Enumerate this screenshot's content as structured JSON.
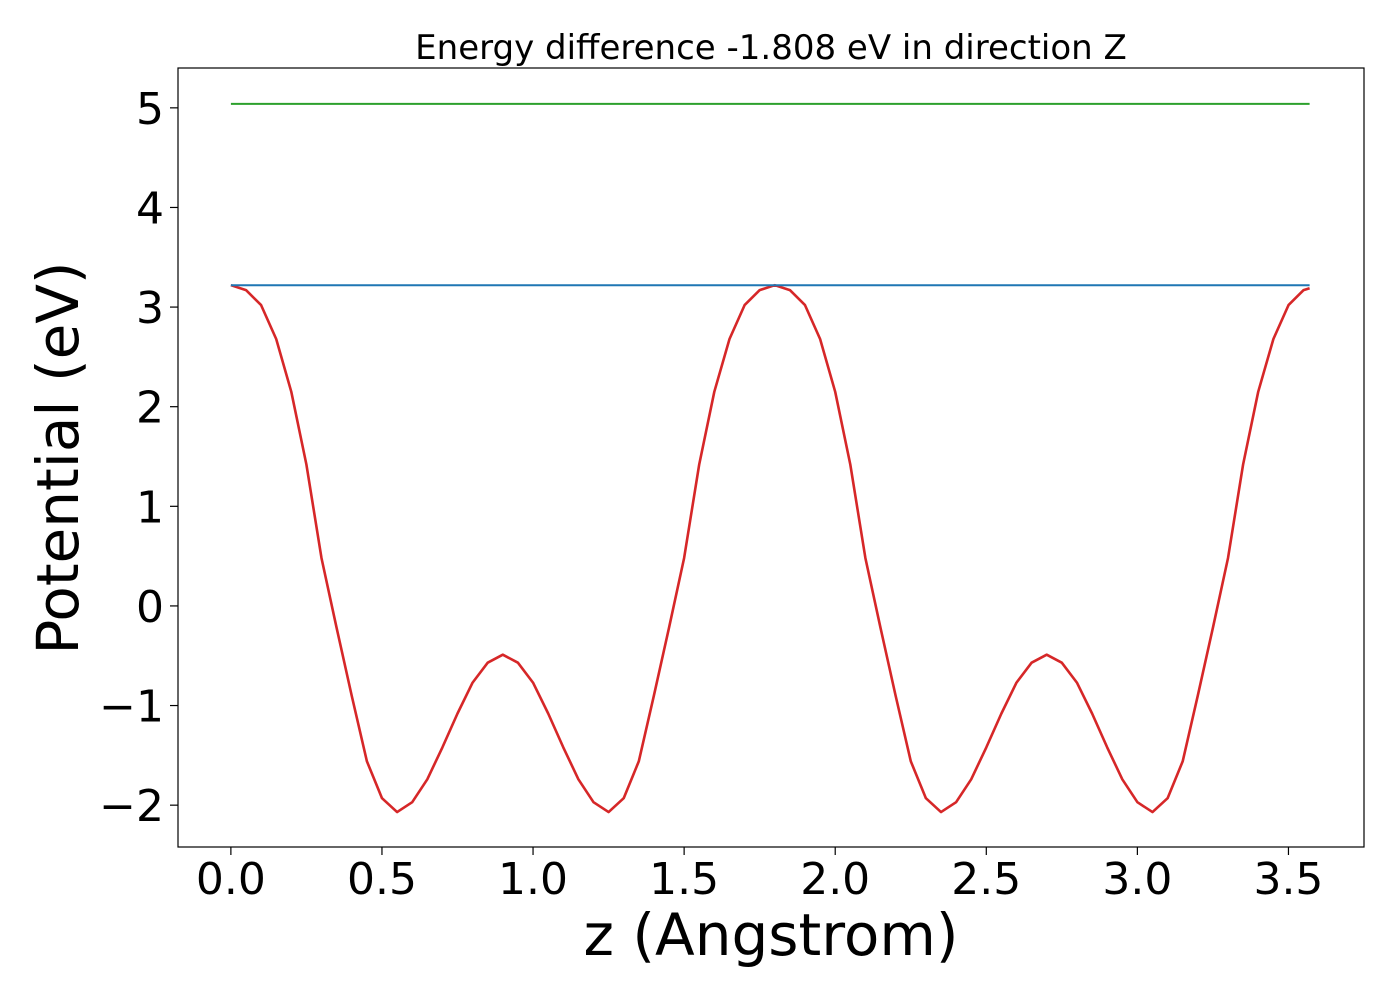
{
  "chart_data": {
    "type": "line",
    "title": "Energy difference -1.808 eV in direction Z",
    "xlabel": "z (Angstrom)",
    "ylabel": "Potential (eV)",
    "xlim": [
      -0.175,
      3.75
    ],
    "ylim": [
      -2.42,
      5.4
    ],
    "xticks": [
      0.0,
      0.5,
      1.0,
      1.5,
      2.0,
      2.5,
      3.0,
      3.5
    ],
    "xtick_labels": [
      "0.0",
      "0.5",
      "1.0",
      "1.5",
      "2.0",
      "2.5",
      "3.0",
      "3.5"
    ],
    "yticks": [
      -2,
      -1,
      0,
      1,
      2,
      3,
      4,
      5
    ],
    "ytick_labels": [
      "−2",
      "−1",
      "0",
      "1",
      "2",
      "3",
      "4",
      "5"
    ],
    "grid": false,
    "series": [
      {
        "color": "#d62728",
        "x": [
          0.0,
          0.05,
          0.1,
          0.15,
          0.2,
          0.25,
          0.3,
          0.35,
          0.4,
          0.45,
          0.5,
          0.55,
          0.6,
          0.65,
          0.7,
          0.75,
          0.8,
          0.85,
          0.9,
          0.95,
          1.0,
          1.05,
          1.1,
          1.15,
          1.2,
          1.25,
          1.3,
          1.35,
          1.4,
          1.45,
          1.5,
          1.55,
          1.6,
          1.65,
          1.7,
          1.75,
          1.8,
          1.85,
          1.9,
          1.95,
          2.0,
          2.05,
          2.1,
          2.15,
          2.2,
          2.25,
          2.3,
          2.35,
          2.4,
          2.45,
          2.5,
          2.55,
          2.6,
          2.65,
          2.7,
          2.75,
          2.8,
          2.85,
          2.9,
          2.95,
          3.0,
          3.05,
          3.1,
          3.15,
          3.2,
          3.25,
          3.3,
          3.35,
          3.4,
          3.45,
          3.5,
          3.55,
          3.57
        ],
        "y": [
          3.22,
          3.17,
          3.02,
          2.68,
          2.15,
          1.42,
          0.48,
          -0.22,
          -0.9,
          -1.56,
          -1.93,
          -2.07,
          -1.97,
          -1.74,
          -1.42,
          -1.08,
          -0.77,
          -0.57,
          -0.49,
          -0.57,
          -0.77,
          -1.08,
          -1.42,
          -1.74,
          -1.97,
          -2.07,
          -1.93,
          -1.56,
          -0.9,
          -0.22,
          0.48,
          1.42,
          2.15,
          2.68,
          3.02,
          3.17,
          3.22,
          3.17,
          3.02,
          2.68,
          2.15,
          1.42,
          0.48,
          -0.22,
          -0.9,
          -1.56,
          -1.93,
          -2.07,
          -1.97,
          -1.74,
          -1.42,
          -1.08,
          -0.77,
          -0.57,
          -0.49,
          -0.57,
          -0.77,
          -1.08,
          -1.42,
          -1.74,
          -1.97,
          -2.07,
          -1.93,
          -1.56,
          -0.9,
          -0.22,
          0.48,
          1.42,
          2.15,
          2.68,
          3.02,
          3.17,
          3.19
        ]
      },
      {
        "color": "#1f77b4",
        "x": [
          0.0,
          3.57
        ],
        "y": [
          3.22,
          3.22
        ]
      },
      {
        "color": "#2ca02c",
        "x": [
          0.0,
          3.57
        ],
        "y": [
          5.04,
          5.04
        ]
      }
    ]
  }
}
